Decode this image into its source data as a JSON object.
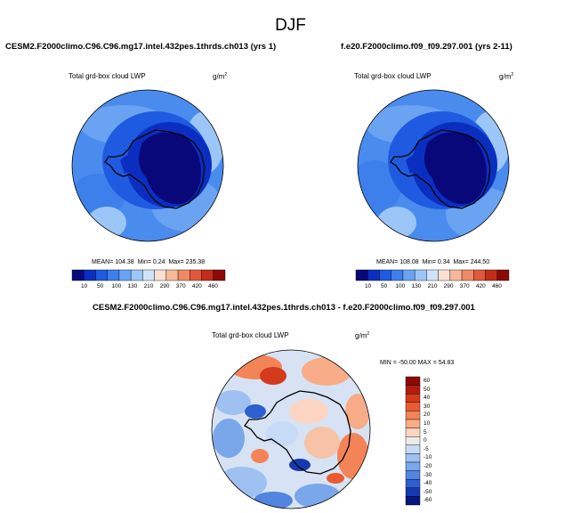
{
  "figure": {
    "title": "DJF"
  },
  "panels": {
    "top_left": {
      "case": "CESM2.F2000climo.C96.C96.mg17.intel.432pes.1thrds.ch013 (yrs 1)",
      "variable": "Total grd-box cloud LWP",
      "units_base": "g/m",
      "units_exp": "2",
      "mean_label": "MEAN=",
      "mean": "104.38",
      "min_label": "Min=",
      "min": "0.24",
      "max_label": "Max=",
      "max": "235.38",
      "colorbar_ticks": [
        "10",
        "50",
        "100",
        "130",
        "210",
        "290",
        "370",
        "420",
        "460"
      ]
    },
    "top_right": {
      "case": "f.e20.F2000climo.f09_f09.297.001 (yrs 2-11)",
      "variable": "Total grd-box cloud LWP",
      "units_base": "g/m",
      "units_exp": "2",
      "mean_label": "MEAN=",
      "mean": "108.08",
      "min_label": "Min=",
      "min": "0.34",
      "max_label": "Max=",
      "max": "244.50",
      "colorbar_ticks": [
        "10",
        "50",
        "100",
        "130",
        "210",
        "290",
        "370",
        "420",
        "460"
      ]
    },
    "difference": {
      "case": "CESM2.F2000climo.C96.C96.mg17.intel.432pes.1thrds.ch013 - f.e20.F2000climo.f09_f09.297.001",
      "variable": "Total grd-box cloud LWP",
      "units_base": "g/m",
      "units_exp": "2",
      "minmax": "MIN = -50.00 MAX =  54.83",
      "colorbar_ticks": [
        "60",
        "50",
        "40",
        "30",
        "20",
        "10",
        "5",
        "0",
        "-5",
        "-10",
        "-20",
        "-30",
        "-40",
        "-50",
        "-60"
      ]
    }
  },
  "colors": {
    "seq_palette": [
      "#08087a",
      "#0a2fc0",
      "#1f5be0",
      "#3d80ec",
      "#6aa3f2",
      "#9cc6f7",
      "#cfe3fa",
      "#fbe0d2",
      "#f6b899",
      "#ee8a66",
      "#df5a3b",
      "#c32c1a",
      "#8b0a08"
    ],
    "div_palette": [
      "#8b0a08",
      "#b31c10",
      "#d43a1c",
      "#ea5a34",
      "#f38458",
      "#f8ac87",
      "#fbd5c2",
      "#ecebe6",
      "#c7daf6",
      "#9fc1f1",
      "#7aa6ea",
      "#5285e0",
      "#2e5fcf",
      "#1539b0",
      "#07157d"
    ],
    "antarctic_core": "#0a0a6e",
    "ocean_mid": "#3d7be8"
  }
}
